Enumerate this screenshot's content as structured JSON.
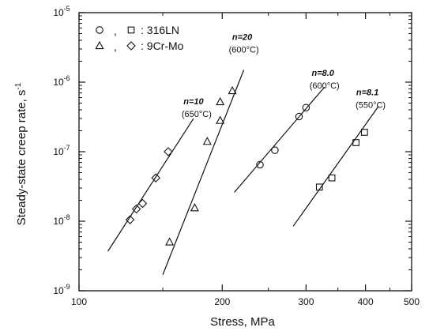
{
  "chart_data": {
    "type": "scatter",
    "title": "",
    "xlabel": "Stress, MPa",
    "ylabel_main": "Steady-state creep rate, s",
    "ylabel_sup": "-1",
    "xscale": "log",
    "yscale": "log",
    "xlim": [
      100,
      500
    ],
    "ylim": [
      1e-09,
      1e-05
    ],
    "x_ticks": [
      {
        "value": 100,
        "label": "100"
      },
      {
        "value": 200,
        "label": "200"
      },
      {
        "value": 300,
        "label": "300"
      },
      {
        "value": 400,
        "label": "400"
      },
      {
        "value": 500,
        "label": "500"
      }
    ],
    "y_ticks": [
      {
        "value": 1e-09,
        "base": "10",
        "exp": "-9"
      },
      {
        "value": 1e-08,
        "base": "10",
        "exp": "-8"
      },
      {
        "value": 1e-07,
        "base": "10",
        "exp": "-7"
      },
      {
        "value": 1e-06,
        "base": "10",
        "exp": "-6"
      },
      {
        "value": 1e-05,
        "base": "10",
        "exp": "-5"
      }
    ],
    "legend": {
      "placement": "top-left",
      "entries": [
        {
          "markers": [
            "circle",
            "square"
          ],
          "label": ": 316LN"
        },
        {
          "markers": [
            "triangle",
            "diamond"
          ],
          "label": ": 9Cr-Mo"
        }
      ]
    },
    "series": [
      {
        "material": "9Cr-Mo",
        "marker": "diamond",
        "points": [
          [
            128,
            1.05e-08
          ],
          [
            132,
            1.5e-08
          ],
          [
            136,
            1.8e-08
          ],
          [
            145,
            4.2e-08
          ],
          [
            154,
            1e-07
          ]
        ]
      },
      {
        "material": "9Cr-Mo",
        "marker": "triangle",
        "points": [
          [
            155,
            5e-09
          ],
          [
            175,
            1.55e-08
          ],
          [
            186,
            1.4e-07
          ],
          [
            198,
            2.8e-07
          ],
          [
            198,
            5.2e-07
          ],
          [
            210,
            7.5e-07
          ]
        ]
      },
      {
        "material": "316LN",
        "marker": "circle",
        "points": [
          [
            240,
            6.5e-08
          ],
          [
            258,
            1.05e-07
          ],
          [
            290,
            3.2e-07
          ],
          [
            300,
            4.3e-07
          ]
        ]
      },
      {
        "material": "316LN",
        "marker": "square",
        "points": [
          [
            320,
            3.1e-08
          ],
          [
            340,
            4.2e-08
          ],
          [
            382,
            1.35e-07
          ],
          [
            398,
            1.9e-07
          ]
        ]
      }
    ],
    "fit_lines": [
      {
        "n": "n=10",
        "temp": "(650°C)",
        "from": [
          115,
          3.7e-09
        ],
        "to": [
          174,
          3e-07
        ]
      },
      {
        "n": "n=20",
        "temp": "(600°C)",
        "from": [
          150,
          1.7e-09
        ],
        "to": [
          222,
          1.5e-06
        ]
      },
      {
        "n": "n=8.0",
        "temp": "(600°C)",
        "from": [
          212,
          2.6e-08
        ],
        "to": [
          328,
          8.5e-07
        ]
      },
      {
        "n": "n=8.1",
        "temp": "(550°C)",
        "from": [
          282,
          8.5e-09
        ],
        "to": [
          426,
          4.5e-07
        ]
      }
    ]
  }
}
